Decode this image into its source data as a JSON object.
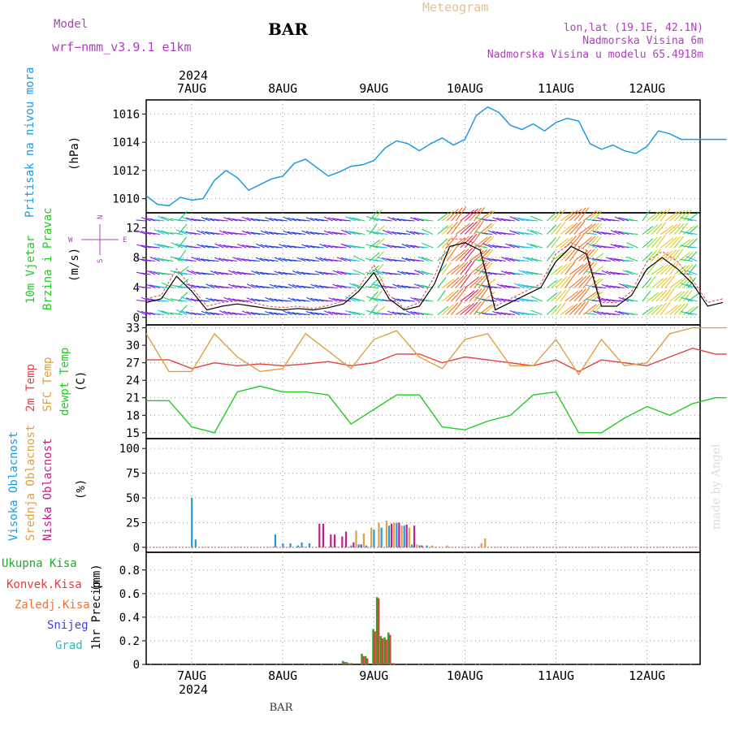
{
  "header": {
    "model_label": "Model",
    "model_name": "wrf−nmm_v3.9.1  e1km",
    "station": "BAR",
    "app_title": "Meteogram",
    "lonlat": "lon,lat (19.1E, 42.1N)",
    "elevation": "Nadmorska Visina 6m",
    "model_elevation": "Nadmorska Visina u modelu 65.4918m",
    "year_top": "2024"
  },
  "footer": {
    "year_bottom": "2024",
    "station": "BAR",
    "watermark": "made by Angel"
  },
  "colors": {
    "pressure": "#1e9be0",
    "temp2m": "#e84040",
    "sfc_temp": "#e0a040",
    "dewpt": "#22cc22",
    "high_cloud": "#1e9be0",
    "mid_cloud": "#e0a040",
    "low_cloud": "#c0208a",
    "total_precip": "#22aa22",
    "convective_precip": "#e83a3a",
    "snow": "#4040e0",
    "grad": "#20c0c0",
    "violet_text": "#b040c0",
    "grid": "#999999"
  },
  "chart_data": [
    {
      "type": "line",
      "panel": "pressure",
      "ylabel": "Pritisak na nivou mora",
      "unit": "(hPa)",
      "ylim": [
        1009,
        1017
      ],
      "yticks": [
        1010,
        1012,
        1014,
        1016
      ],
      "x_hours": [
        0,
        3,
        6,
        9,
        12,
        15,
        18,
        21,
        24,
        27,
        30,
        33,
        36,
        39,
        42,
        45,
        48,
        51,
        54,
        57,
        60,
        63,
        66,
        69,
        72,
        75,
        78,
        81,
        84,
        87,
        90,
        93,
        96,
        99,
        102,
        105,
        108,
        111,
        114,
        117,
        120,
        123,
        126,
        129,
        132,
        135,
        138,
        141,
        144,
        147,
        150,
        153
      ],
      "values": [
        1010.2,
        1009.6,
        1009.5,
        1010.1,
        1009.9,
        1010.0,
        1011.3,
        1012.0,
        1011.5,
        1010.6,
        1011.0,
        1011.4,
        1011.6,
        1012.5,
        1012.8,
        1012.2,
        1011.6,
        1011.9,
        1012.3,
        1012.4,
        1012.7,
        1013.6,
        1014.1,
        1013.9,
        1013.4,
        1013.9,
        1014.3,
        1013.8,
        1014.2,
        1015.9,
        1016.5,
        1016.1,
        1015.2,
        1014.9,
        1015.3,
        1014.8,
        1015.4,
        1015.7,
        1015.5,
        1013.9,
        1013.5,
        1013.8,
        1013.4,
        1013.2,
        1013.7,
        1014.8,
        1014.6,
        1014.2,
        1014.2,
        1014.2,
        1014.2,
        1014.2
      ]
    },
    {
      "type": "line",
      "panel": "wind",
      "ylabel": "10m Vjetar",
      "ylabel2": "Brzina i Pravac",
      "unit": "(m/s)",
      "ylim": [
        -1,
        14
      ],
      "yticks": [
        0,
        4,
        8,
        12
      ],
      "compass": {
        "n": "N",
        "w": "W",
        "e": "E",
        "s": "S"
      },
      "x_hours": [
        0,
        4,
        8,
        12,
        16,
        20,
        24,
        28,
        32,
        36,
        40,
        44,
        48,
        52,
        56,
        60,
        64,
        68,
        72,
        76,
        80,
        84,
        88,
        92,
        96,
        100,
        104,
        108,
        112,
        116,
        120,
        124,
        128,
        132,
        136,
        140,
        144,
        148,
        152
      ],
      "values": [
        2.0,
        2.5,
        5.5,
        3.5,
        1.0,
        1.5,
        1.8,
        1.5,
        1.2,
        1.0,
        1.2,
        1.0,
        1.3,
        1.8,
        3.5,
        6.0,
        2.5,
        1.0,
        1.5,
        4.5,
        9.5,
        10.0,
        9.0,
        1.0,
        2.0,
        3.0,
        4.0,
        7.5,
        9.5,
        8.5,
        1.5,
        1.5,
        3.0,
        6.5,
        8.0,
        6.5,
        4.5,
        1.5,
        2.0
      ],
      "gust_values": [
        2.5,
        3.0,
        6.5,
        4.0,
        1.5,
        2.0,
        2.2,
        2.0,
        1.5,
        1.3,
        1.5,
        1.2,
        1.6,
        2.2,
        4.0,
        7.0,
        3.0,
        1.2,
        2.0,
        5.5,
        10.5,
        10.5,
        9.5,
        1.5,
        2.5,
        3.5,
        4.5,
        8.5,
        10.0,
        9.0,
        2.0,
        2.0,
        3.5,
        7.5,
        8.8,
        7.5,
        5.0,
        2.0,
        2.5
      ]
    },
    {
      "type": "line",
      "panel": "temperature",
      "ylabel": "2m Temp",
      "ylabel2": "SFC Temp",
      "ylabel3": "dewpt Temp",
      "unit": "(C)",
      "ylim": [
        14,
        33.5
      ],
      "yticks": [
        15,
        18,
        21,
        24,
        27,
        30,
        33
      ],
      "x_hours": [
        0,
        6,
        12,
        18,
        24,
        30,
        36,
        42,
        48,
        54,
        60,
        66,
        72,
        78,
        84,
        90,
        96,
        102,
        108,
        114,
        120,
        126,
        132,
        138,
        144,
        150,
        153
      ],
      "series": [
        {
          "name": "2m Temp",
          "values": [
            27.5,
            27.5,
            26.0,
            27.0,
            26.5,
            26.8,
            26.5,
            26.8,
            27.2,
            26.5,
            27.0,
            28.5,
            28.5,
            27.0,
            28.0,
            27.5,
            27.0,
            26.5,
            27.5,
            25.5,
            27.5,
            27.0,
            26.5,
            28.0,
            29.5,
            28.5,
            28.5
          ]
        },
        {
          "name": "SFC Temp",
          "values": [
            32.0,
            25.5,
            25.5,
            32.0,
            28.0,
            25.5,
            26.0,
            32.0,
            29.0,
            26.0,
            31.0,
            32.5,
            28.0,
            26.0,
            31.0,
            32.0,
            26.5,
            26.5,
            31.0,
            25.0,
            31.0,
            26.5,
            27.0,
            32.0,
            33.0,
            33.0,
            33.0
          ]
        },
        {
          "name": "dewpt Temp",
          "values": [
            20.5,
            20.5,
            16.0,
            15.0,
            22.0,
            23.0,
            22.0,
            22.0,
            21.5,
            16.5,
            19.0,
            21.5,
            21.5,
            16.0,
            15.5,
            17.0,
            18.0,
            21.5,
            22.0,
            15.0,
            15.0,
            17.5,
            19.5,
            18.0,
            20.0,
            21.0,
            21.0
          ]
        }
      ]
    },
    {
      "type": "bar",
      "panel": "cloud",
      "ylabel": "Visoka Oblacnost",
      "ylabel2": "Srednja Oblacnost",
      "ylabel3": "Niska Oblacnost",
      "unit": "(%)",
      "ylim": [
        -5,
        110
      ],
      "yticks": [
        0,
        25,
        50,
        75,
        100
      ],
      "series": [
        {
          "name": "Visoka Oblacnost",
          "x_hours": [
            12,
            13,
            34,
            36,
            38,
            40,
            41,
            43,
            54,
            56,
            58,
            60,
            62,
            64,
            66,
            68,
            70,
            72,
            74
          ],
          "values": [
            50,
            8,
            13,
            4,
            4,
            2,
            5,
            4,
            2,
            3,
            2,
            18,
            20,
            22,
            25,
            22,
            3,
            2,
            2
          ]
        },
        {
          "name": "Srednja Oblacnost",
          "x_hours": [
            55,
            57,
            59,
            61,
            63,
            65,
            67,
            69,
            71,
            75,
            79,
            88,
            89
          ],
          "values": [
            17,
            14,
            20,
            25,
            27,
            25,
            22,
            20,
            3,
            2,
            2,
            4,
            9
          ]
        },
        {
          "name": "Niska Oblacnost",
          "x_hours": [
            45,
            46,
            48,
            49,
            51,
            52,
            54,
            56,
            64,
            66,
            68,
            70,
            72
          ],
          "values": [
            24,
            24,
            13,
            13,
            11,
            16,
            5,
            3,
            24,
            25,
            23,
            22,
            2
          ]
        }
      ]
    },
    {
      "type": "bar",
      "panel": "precipitation",
      "ylabel": "1hr Precip",
      "unit": "(mm)",
      "ylim": [
        0,
        0.95
      ],
      "yticks": [
        0,
        0.2,
        0.4,
        0.6,
        0.8
      ],
      "legend": [
        "Ukupna Kisa",
        "Konvek.Kisa",
        "Zaledj.Kisa",
        "Snijeg",
        "Grad"
      ],
      "series": [
        {
          "name": "Ukupna Kisa",
          "x_hours": [
            52,
            53,
            54,
            57,
            58,
            60,
            61,
            62,
            63,
            64,
            65
          ],
          "values": [
            0.03,
            0.02,
            0.01,
            0.09,
            0.07,
            0.3,
            0.57,
            0.24,
            0.23,
            0.27,
            0.01
          ]
        },
        {
          "name": "Konvek.Kisa",
          "x_hours": [
            52,
            53,
            54,
            57,
            58,
            60,
            61,
            62,
            63,
            64,
            65
          ],
          "values": [
            0.02,
            0.01,
            0.01,
            0.07,
            0.05,
            0.28,
            0.56,
            0.22,
            0.21,
            0.25,
            0.01
          ]
        }
      ]
    }
  ],
  "x_axis": {
    "start_date": "2024-08-06",
    "ticks": [
      {
        "label": "7AUG",
        "hour": 12
      },
      {
        "label": "8AUG",
        "hour": 36
      },
      {
        "label": "9AUG",
        "hour": 60
      },
      {
        "label": "10AUG",
        "hour": 84
      },
      {
        "label": "11AUG",
        "hour": 108
      },
      {
        "label": "12AUG",
        "hour": 132
      }
    ],
    "xlim": [
      0,
      146
    ]
  }
}
